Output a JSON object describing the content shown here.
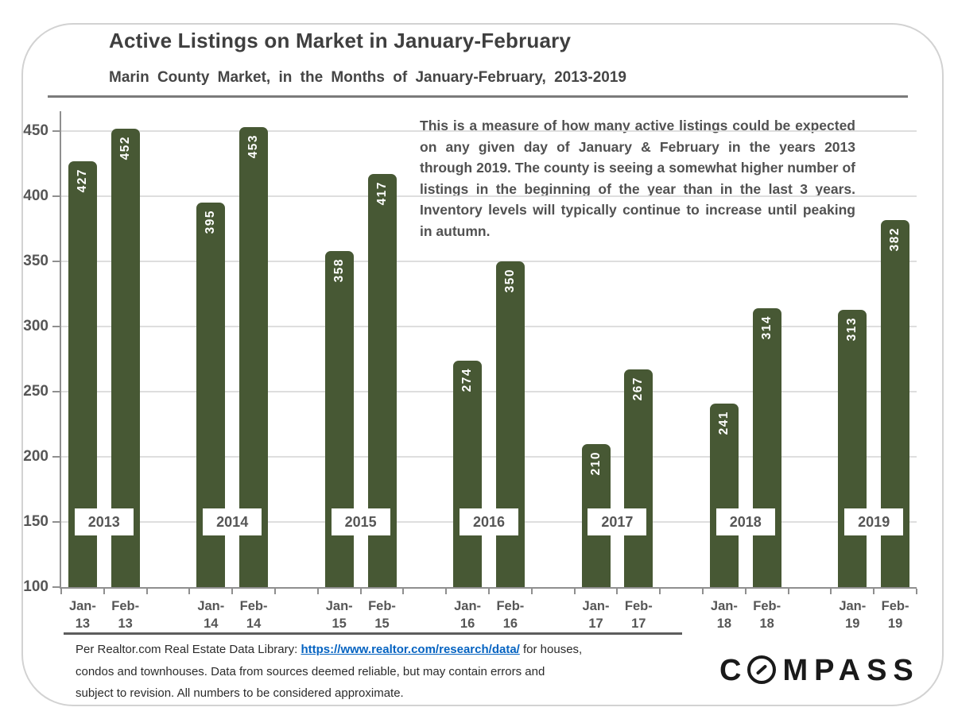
{
  "header": {
    "title": "Active Listings on Market in January-February",
    "subtitle": "Marin County Market, in the Months of January-February, 2013-2019"
  },
  "annotation": {
    "text": "This is a measure of how many active listings could be expected on any given day of January & February in the years 2013 through 2019. The county is seeing a somewhat higher number of listings in the beginning of the year than in the last 3 years. Inventory levels will typically continue to increase until peaking in autumn."
  },
  "chart_data": {
    "type": "bar",
    "title": "Active Listings on Market in January-February",
    "subtitle": "Marin County Market, in the Months of January-February, 2013-2019",
    "categories": [
      "Jan-13",
      "Feb-13",
      "Jan-14",
      "Feb-14",
      "Jan-15",
      "Feb-15",
      "Jan-16",
      "Feb-16",
      "Jan-17",
      "Feb-17",
      "Jan-18",
      "Feb-18",
      "Jan-19",
      "Feb-19"
    ],
    "values": [
      427,
      452,
      395,
      453,
      358,
      417,
      274,
      350,
      210,
      267,
      241,
      314,
      313,
      382
    ],
    "year_groups": [
      "2013",
      "2014",
      "2015",
      "2016",
      "2017",
      "2018",
      "2019"
    ],
    "xlabel": "",
    "ylabel": "",
    "ylim": [
      100,
      450
    ],
    "ytick_step": 50,
    "yticks": [
      100,
      150,
      200,
      250,
      300,
      350,
      400,
      450
    ],
    "grid": "horizontal",
    "legend": "none",
    "bar_color": "#475834",
    "value_label_color": "#ffffff",
    "value_labels_rotated": true,
    "axis_text_color": "#565656"
  },
  "footer": {
    "lines": [
      [
        {
          "text": "Per Realtor.com  Real Estate Data Library: "
        },
        {
          "text": "https://www.realtor.com/research/data/",
          "link": true
        },
        {
          "text": " for houses,"
        }
      ],
      [
        {
          "text": "condos and townhouses. Data from sources deemed reliable,  but may contain  errors and"
        }
      ],
      [
        {
          "text": "subject to revision. All numbers to be considered approximate."
        }
      ]
    ]
  },
  "logo": {
    "text": "COMPASS",
    "before_o": "C",
    "after_o": "MPASS"
  }
}
